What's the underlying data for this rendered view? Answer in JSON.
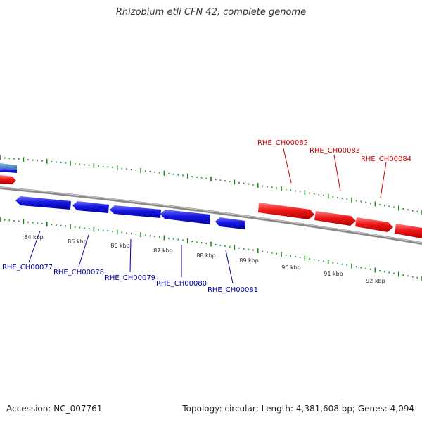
{
  "title": "Rhizobium etli CFN 42, complete genome",
  "footer": {
    "accession": "Accession: NC_007761",
    "stats": "Topology: circular; Length: 4,381,608 bp; Genes: 4,094"
  },
  "colors": {
    "forward_gene": "#e8101a",
    "reverse_gene": "#1a1adc",
    "neighbor_gene": "#3f7fbf",
    "backbone": "#8a8a8a",
    "tick": "#1a8a1a",
    "forward_label": "#cc0000",
    "reverse_label": "#0000aa"
  },
  "scale_labels": [
    "84 kbp",
    "85 kbp",
    "86 kbp",
    "87 kbp",
    "88 kbp",
    "89 kbp",
    "90 kbp",
    "91 kbp",
    "92 kbp"
  ],
  "forward_genes": [
    {
      "id": "RHE_CH00082",
      "label": "RHE_CH00082"
    },
    {
      "id": "RHE_CH00083",
      "label": "RHE_CH00083"
    },
    {
      "id": "RHE_CH00084",
      "label": "RHE_CH00084"
    }
  ],
  "reverse_genes": [
    {
      "id": "RHE_CH00077",
      "label": "RHE_CH00077"
    },
    {
      "id": "RHE_CH00078",
      "label": "RHE_CH00078"
    },
    {
      "id": "RHE_CH00079",
      "label": "RHE_CH00079"
    },
    {
      "id": "RHE_CH00080",
      "label": "RHE_CH00080"
    },
    {
      "id": "RHE_CH00081",
      "label": "RHE_CH00081"
    }
  ]
}
